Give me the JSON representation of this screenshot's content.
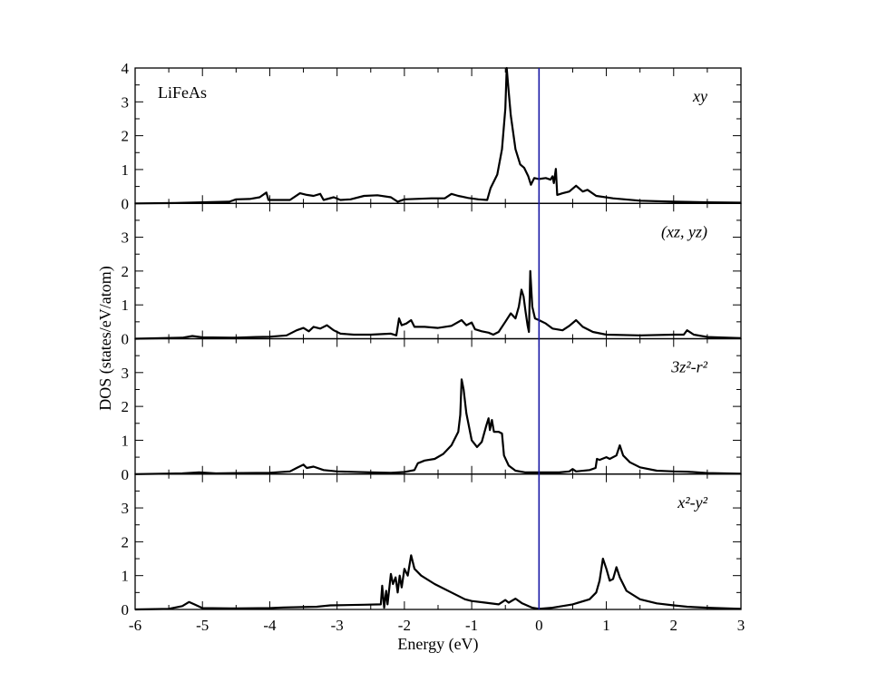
{
  "chart_data": {
    "type": "line",
    "system_label": "LiFeAs",
    "xlabel": "Energy (eV)",
    "ylabel": "DOS (states/eV/atom)",
    "xlim": [
      -6,
      3
    ],
    "x_ticks": [
      "-6",
      "-5",
      "-4",
      "-3",
      "-2",
      "-1",
      "0",
      "1",
      "2",
      "3"
    ],
    "fermi_level_x": 0,
    "fermi_line_color": "#1a1aa6",
    "line_color": "#000000",
    "panels": [
      {
        "label": "xy",
        "ylim": [
          0,
          4
        ],
        "y_ticks": [
          "0",
          "1",
          "2",
          "3",
          "4"
        ],
        "points": [
          [
            -6,
            0
          ],
          [
            -5.4,
            0.01
          ],
          [
            -5,
            0.03
          ],
          [
            -4.6,
            0.05
          ],
          [
            -4.5,
            0.12
          ],
          [
            -4.3,
            0.13
          ],
          [
            -4.15,
            0.18
          ],
          [
            -4.05,
            0.32
          ],
          [
            -4.02,
            0.1
          ],
          [
            -3.95,
            0.1
          ],
          [
            -3.7,
            0.1
          ],
          [
            -3.55,
            0.3
          ],
          [
            -3.45,
            0.25
          ],
          [
            -3.35,
            0.22
          ],
          [
            -3.25,
            0.28
          ],
          [
            -3.2,
            0.1
          ],
          [
            -3.05,
            0.18
          ],
          [
            -2.95,
            0.1
          ],
          [
            -2.8,
            0.12
          ],
          [
            -2.6,
            0.22
          ],
          [
            -2.4,
            0.24
          ],
          [
            -2.2,
            0.18
          ],
          [
            -2.1,
            0.05
          ],
          [
            -2.0,
            0.12
          ],
          [
            -1.6,
            0.15
          ],
          [
            -1.4,
            0.15
          ],
          [
            -1.3,
            0.28
          ],
          [
            -1.2,
            0.22
          ],
          [
            -1.05,
            0.16
          ],
          [
            -0.9,
            0.12
          ],
          [
            -0.77,
            0.1
          ],
          [
            -0.72,
            0.45
          ],
          [
            -0.62,
            0.85
          ],
          [
            -0.55,
            1.6
          ],
          [
            -0.5,
            2.8
          ],
          [
            -0.48,
            4.0
          ],
          [
            -0.45,
            3.3
          ],
          [
            -0.42,
            2.6
          ],
          [
            -0.35,
            1.6
          ],
          [
            -0.28,
            1.15
          ],
          [
            -0.22,
            1.05
          ],
          [
            -0.16,
            0.8
          ],
          [
            -0.12,
            0.55
          ],
          [
            -0.07,
            0.75
          ],
          [
            0.0,
            0.72
          ],
          [
            0.1,
            0.75
          ],
          [
            0.17,
            0.7
          ],
          [
            0.2,
            0.8
          ],
          [
            0.22,
            0.6
          ],
          [
            0.25,
            1.02
          ],
          [
            0.27,
            0.25
          ],
          [
            0.35,
            0.3
          ],
          [
            0.45,
            0.35
          ],
          [
            0.55,
            0.52
          ],
          [
            0.65,
            0.35
          ],
          [
            0.72,
            0.4
          ],
          [
            0.85,
            0.22
          ],
          [
            1.1,
            0.15
          ],
          [
            1.5,
            0.08
          ],
          [
            2.0,
            0.05
          ],
          [
            2.5,
            0.03
          ],
          [
            3,
            0.02
          ]
        ]
      },
      {
        "label": "(xz, yz)",
        "ylim": [
          0,
          4
        ],
        "y_ticks": [
          "0",
          "1",
          "2",
          "3"
        ],
        "points": [
          [
            -6,
            0
          ],
          [
            -5.3,
            0.03
          ],
          [
            -5.15,
            0.08
          ],
          [
            -5.0,
            0.04
          ],
          [
            -4.5,
            0.03
          ],
          [
            -4.2,
            0.05
          ],
          [
            -4.0,
            0.06
          ],
          [
            -3.75,
            0.1
          ],
          [
            -3.6,
            0.25
          ],
          [
            -3.5,
            0.32
          ],
          [
            -3.42,
            0.22
          ],
          [
            -3.35,
            0.35
          ],
          [
            -3.25,
            0.3
          ],
          [
            -3.15,
            0.4
          ],
          [
            -3.05,
            0.25
          ],
          [
            -2.95,
            0.15
          ],
          [
            -2.75,
            0.12
          ],
          [
            -2.5,
            0.12
          ],
          [
            -2.2,
            0.15
          ],
          [
            -2.12,
            0.1
          ],
          [
            -2.08,
            0.6
          ],
          [
            -2.04,
            0.4
          ],
          [
            -1.97,
            0.45
          ],
          [
            -1.9,
            0.55
          ],
          [
            -1.85,
            0.35
          ],
          [
            -1.7,
            0.35
          ],
          [
            -1.5,
            0.32
          ],
          [
            -1.3,
            0.38
          ],
          [
            -1.15,
            0.55
          ],
          [
            -1.08,
            0.4
          ],
          [
            -1.0,
            0.48
          ],
          [
            -0.95,
            0.28
          ],
          [
            -0.85,
            0.22
          ],
          [
            -0.75,
            0.18
          ],
          [
            -0.68,
            0.12
          ],
          [
            -0.6,
            0.2
          ],
          [
            -0.5,
            0.5
          ],
          [
            -0.42,
            0.75
          ],
          [
            -0.35,
            0.6
          ],
          [
            -0.3,
            0.95
          ],
          [
            -0.26,
            1.45
          ],
          [
            -0.23,
            1.25
          ],
          [
            -0.2,
            0.8
          ],
          [
            -0.17,
            0.4
          ],
          [
            -0.15,
            0.2
          ],
          [
            -0.13,
            2.0
          ],
          [
            -0.1,
            0.95
          ],
          [
            -0.06,
            0.6
          ],
          [
            0.0,
            0.55
          ],
          [
            0.1,
            0.45
          ],
          [
            0.2,
            0.3
          ],
          [
            0.35,
            0.25
          ],
          [
            0.45,
            0.38
          ],
          [
            0.55,
            0.55
          ],
          [
            0.65,
            0.35
          ],
          [
            0.8,
            0.2
          ],
          [
            1.0,
            0.12
          ],
          [
            1.5,
            0.1
          ],
          [
            2.0,
            0.12
          ],
          [
            2.15,
            0.12
          ],
          [
            2.2,
            0.25
          ],
          [
            2.3,
            0.12
          ],
          [
            2.5,
            0.05
          ],
          [
            3,
            0.02
          ]
        ]
      },
      {
        "label": "3z²-r²",
        "ylim": [
          0,
          4
        ],
        "y_ticks": [
          "0",
          "1",
          "2",
          "3"
        ],
        "points": [
          [
            -6,
            0
          ],
          [
            -5.3,
            0.02
          ],
          [
            -5.05,
            0.05
          ],
          [
            -4.8,
            0.02
          ],
          [
            -4.4,
            0.03
          ],
          [
            -4.0,
            0.04
          ],
          [
            -3.7,
            0.08
          ],
          [
            -3.6,
            0.18
          ],
          [
            -3.5,
            0.28
          ],
          [
            -3.45,
            0.18
          ],
          [
            -3.35,
            0.22
          ],
          [
            -3.2,
            0.12
          ],
          [
            -3.0,
            0.08
          ],
          [
            -2.5,
            0.05
          ],
          [
            -2.2,
            0.04
          ],
          [
            -2.0,
            0.06
          ],
          [
            -1.85,
            0.12
          ],
          [
            -1.8,
            0.32
          ],
          [
            -1.7,
            0.4
          ],
          [
            -1.55,
            0.45
          ],
          [
            -1.42,
            0.6
          ],
          [
            -1.3,
            0.85
          ],
          [
            -1.2,
            1.25
          ],
          [
            -1.17,
            1.75
          ],
          [
            -1.15,
            2.8
          ],
          [
            -1.12,
            2.5
          ],
          [
            -1.08,
            1.8
          ],
          [
            -1.0,
            1.0
          ],
          [
            -0.92,
            0.8
          ],
          [
            -0.85,
            0.95
          ],
          [
            -0.78,
            1.45
          ],
          [
            -0.75,
            1.65
          ],
          [
            -0.73,
            1.3
          ],
          [
            -0.7,
            1.6
          ],
          [
            -0.67,
            1.25
          ],
          [
            -0.6,
            1.25
          ],
          [
            -0.55,
            1.2
          ],
          [
            -0.52,
            0.55
          ],
          [
            -0.45,
            0.25
          ],
          [
            -0.35,
            0.1
          ],
          [
            -0.2,
            0.05
          ],
          [
            0.0,
            0.05
          ],
          [
            0.3,
            0.05
          ],
          [
            0.45,
            0.08
          ],
          [
            0.5,
            0.15
          ],
          [
            0.55,
            0.08
          ],
          [
            0.75,
            0.12
          ],
          [
            0.84,
            0.18
          ],
          [
            0.86,
            0.45
          ],
          [
            0.9,
            0.42
          ],
          [
            1.0,
            0.5
          ],
          [
            1.05,
            0.45
          ],
          [
            1.15,
            0.55
          ],
          [
            1.2,
            0.85
          ],
          [
            1.25,
            0.55
          ],
          [
            1.35,
            0.35
          ],
          [
            1.5,
            0.2
          ],
          [
            1.75,
            0.1
          ],
          [
            2.0,
            0.08
          ],
          [
            2.2,
            0.07
          ],
          [
            2.5,
            0.03
          ],
          [
            3,
            0.01
          ]
        ]
      },
      {
        "label": "x²-y²",
        "ylim": [
          0,
          4
        ],
        "y_ticks": [
          "0",
          "1",
          "2",
          "3"
        ],
        "points": [
          [
            -6,
            0
          ],
          [
            -5.5,
            0.02
          ],
          [
            -5.3,
            0.1
          ],
          [
            -5.2,
            0.22
          ],
          [
            -5.12,
            0.15
          ],
          [
            -5.0,
            0.04
          ],
          [
            -4.5,
            0.03
          ],
          [
            -4.0,
            0.04
          ],
          [
            -3.8,
            0.06
          ],
          [
            -3.3,
            0.08
          ],
          [
            -3.1,
            0.12
          ],
          [
            -2.6,
            0.14
          ],
          [
            -2.35,
            0.15
          ],
          [
            -2.33,
            0.7
          ],
          [
            -2.3,
            0.05
          ],
          [
            -2.27,
            0.55
          ],
          [
            -2.25,
            0.15
          ],
          [
            -2.2,
            1.05
          ],
          [
            -2.17,
            0.75
          ],
          [
            -2.13,
            0.95
          ],
          [
            -2.1,
            0.5
          ],
          [
            -2.07,
            1.0
          ],
          [
            -2.04,
            0.65
          ],
          [
            -2.0,
            1.2
          ],
          [
            -1.95,
            1.0
          ],
          [
            -1.9,
            1.6
          ],
          [
            -1.85,
            1.2
          ],
          [
            -1.75,
            1.0
          ],
          [
            -1.55,
            0.75
          ],
          [
            -1.3,
            0.5
          ],
          [
            -1.1,
            0.3
          ],
          [
            -1.0,
            0.25
          ],
          [
            -0.8,
            0.2
          ],
          [
            -0.6,
            0.15
          ],
          [
            -0.5,
            0.28
          ],
          [
            -0.45,
            0.2
          ],
          [
            -0.35,
            0.32
          ],
          [
            -0.25,
            0.18
          ],
          [
            -0.1,
            0.05
          ],
          [
            0.0,
            0.02
          ],
          [
            0.2,
            0.05
          ],
          [
            0.5,
            0.15
          ],
          [
            0.75,
            0.3
          ],
          [
            0.85,
            0.5
          ],
          [
            0.9,
            0.85
          ],
          [
            0.95,
            1.5
          ],
          [
            1.0,
            1.2
          ],
          [
            1.05,
            0.85
          ],
          [
            1.1,
            0.9
          ],
          [
            1.15,
            1.25
          ],
          [
            1.2,
            0.95
          ],
          [
            1.3,
            0.55
          ],
          [
            1.5,
            0.3
          ],
          [
            1.75,
            0.18
          ],
          [
            2.0,
            0.12
          ],
          [
            2.2,
            0.08
          ],
          [
            2.5,
            0.05
          ],
          [
            3,
            0.02
          ]
        ]
      }
    ]
  }
}
